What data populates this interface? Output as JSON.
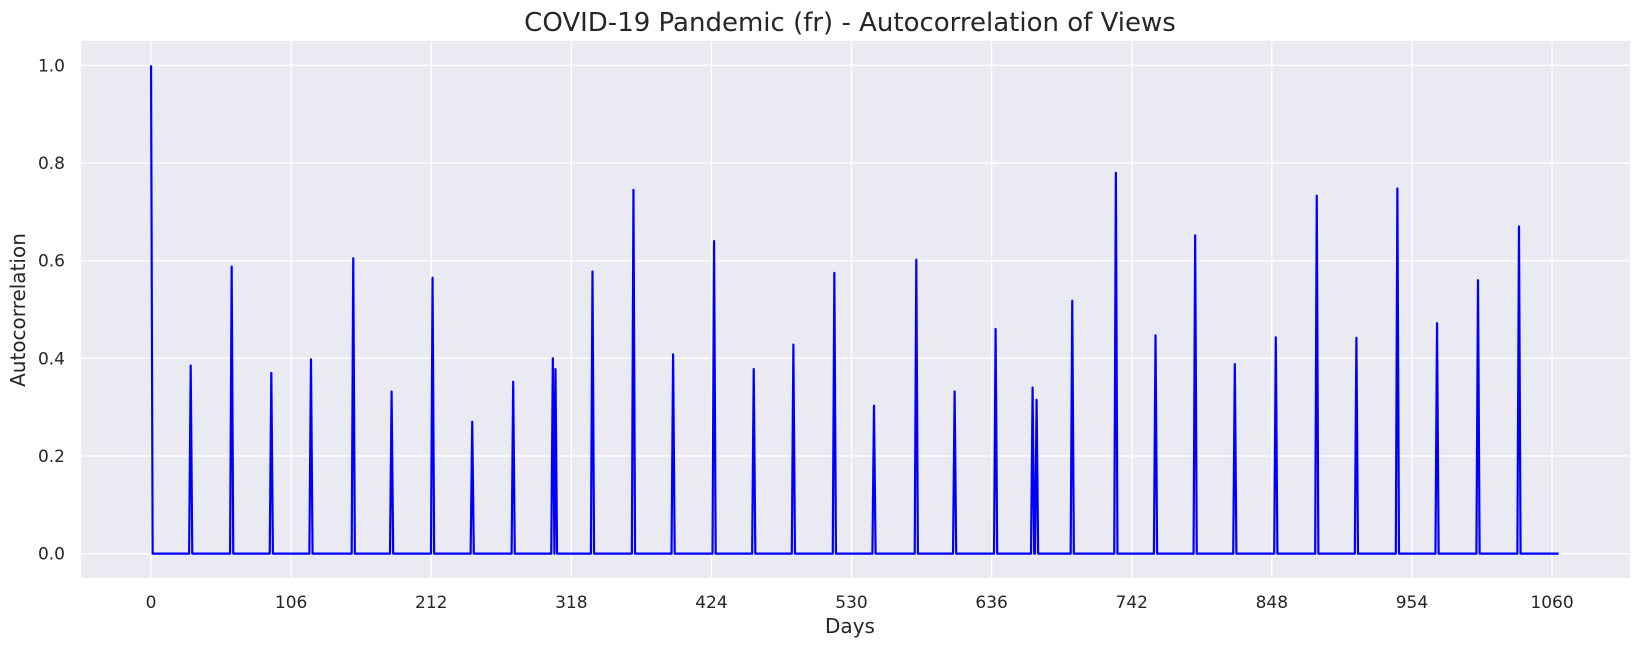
{
  "chart_data": {
    "type": "line",
    "title": "COVID-19 Pandemic (fr) - Autocorrelation of Views",
    "xlabel": "Days",
    "ylabel": "Autocorrelation",
    "xlim": [
      -53,
      1119
    ],
    "ylim": [
      -0.05,
      1.05
    ],
    "xticks": [
      0,
      106,
      212,
      318,
      424,
      530,
      636,
      742,
      848,
      954,
      1060
    ],
    "yticks": [
      0.0,
      0.2,
      0.4,
      0.6,
      0.8,
      1.0
    ],
    "ytick_labels": [
      "0.0",
      "0.2",
      "0.4",
      "0.6",
      "0.8",
      "1.0"
    ],
    "grid": true,
    "background_color": "#eaeaf2",
    "grid_color": "#ffffff",
    "series": [
      {
        "color": "#0000ff",
        "x_max": 1065,
        "peaks": [
          {
            "x": 0,
            "y": 1.0
          },
          {
            "x": 30,
            "y": 0.385
          },
          {
            "x": 61,
            "y": 0.588
          },
          {
            "x": 91,
            "y": 0.37
          },
          {
            "x": 121,
            "y": 0.398
          },
          {
            "x": 153,
            "y": 0.605
          },
          {
            "x": 182,
            "y": 0.332
          },
          {
            "x": 213,
            "y": 0.565
          },
          {
            "x": 243,
            "y": 0.27
          },
          {
            "x": 274,
            "y": 0.352
          },
          {
            "x": 304,
            "y": 0.4
          },
          {
            "x": 306,
            "y": 0.378
          },
          {
            "x": 334,
            "y": 0.578
          },
          {
            "x": 365,
            "y": 0.745
          },
          {
            "x": 395,
            "y": 0.408
          },
          {
            "x": 426,
            "y": 0.64
          },
          {
            "x": 456,
            "y": 0.378
          },
          {
            "x": 486,
            "y": 0.428
          },
          {
            "x": 517,
            "y": 0.575
          },
          {
            "x": 547,
            "y": 0.303
          },
          {
            "x": 579,
            "y": 0.602
          },
          {
            "x": 608,
            "y": 0.332
          },
          {
            "x": 639,
            "y": 0.46
          },
          {
            "x": 667,
            "y": 0.34
          },
          {
            "x": 670,
            "y": 0.315
          },
          {
            "x": 697,
            "y": 0.518
          },
          {
            "x": 730,
            "y": 0.78
          },
          {
            "x": 760,
            "y": 0.447
          },
          {
            "x": 790,
            "y": 0.652
          },
          {
            "x": 820,
            "y": 0.388
          },
          {
            "x": 851,
            "y": 0.443
          },
          {
            "x": 882,
            "y": 0.733
          },
          {
            "x": 912,
            "y": 0.442
          },
          {
            "x": 943,
            "y": 0.748
          },
          {
            "x": 973,
            "y": 0.472
          },
          {
            "x": 1004,
            "y": 0.56
          },
          {
            "x": 1035,
            "y": 0.67
          }
        ]
      }
    ]
  }
}
